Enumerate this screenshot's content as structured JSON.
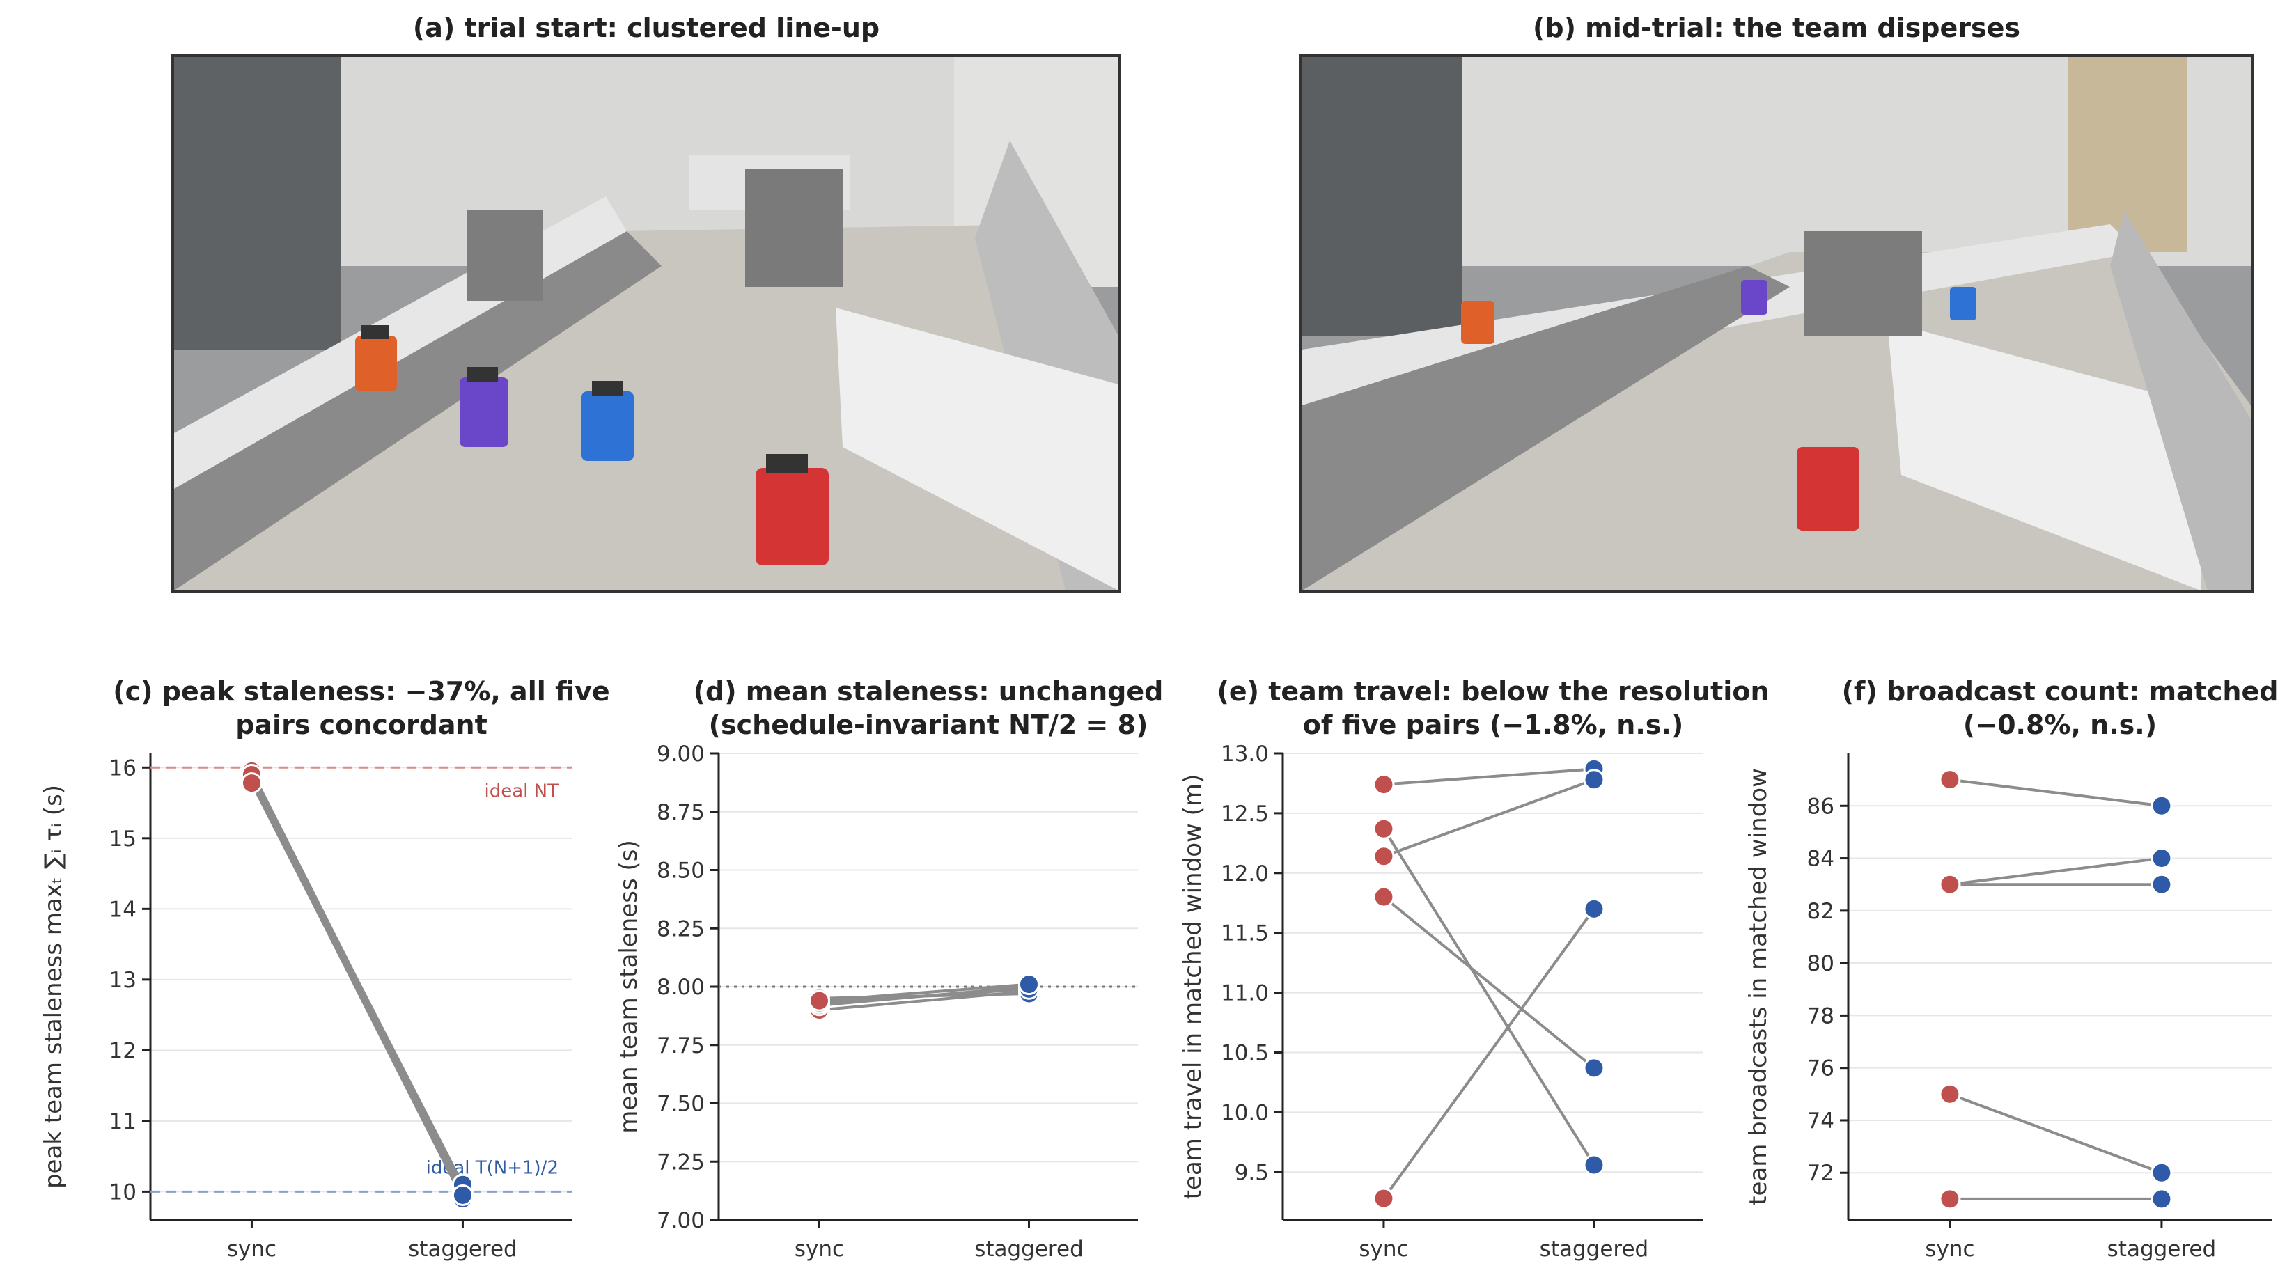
{
  "photos": [
    {
      "title": "(a) trial start: clustered line-up"
    },
    {
      "title": "(b) mid-trial: the team disperses"
    }
  ],
  "chart_data": [
    {
      "type": "line",
      "title": "(c) peak staleness: −37%, all five",
      "title2": "pairs concordant",
      "ylabel": "peak team staleness maxₜ ∑ᵢ τᵢ (s)",
      "categories": [
        "sync",
        "staggered"
      ],
      "ylim": [
        9.6,
        16.2
      ],
      "yticks": [
        10,
        11,
        12,
        13,
        14,
        15,
        16
      ],
      "yticklabels": [
        "10",
        "11",
        "12",
        "13",
        "14",
        "15",
        "16"
      ],
      "pairs": [
        [
          15.95,
          10.05
        ],
        [
          15.8,
          9.9
        ],
        [
          15.85,
          10.0
        ],
        [
          15.9,
          10.1
        ],
        [
          15.78,
          9.95
        ]
      ],
      "refs": [
        {
          "y": 16,
          "label": "ideal NT",
          "color": "#d98a8a",
          "text_color": "#c0504d",
          "style": "dashed"
        },
        {
          "y": 10,
          "label": "ideal T(N+1)/2",
          "color": "#8a9fd0",
          "text_color": "#2f5aa8",
          "style": "dashed"
        }
      ]
    },
    {
      "type": "line",
      "title": "(d) mean staleness: unchanged",
      "title2": "(schedule-invariant NT/2 = 8)",
      "ylabel": "mean team staleness (s)",
      "categories": [
        "sync",
        "staggered"
      ],
      "ylim": [
        7.0,
        9.0
      ],
      "yticks": [
        7.0,
        7.25,
        7.5,
        7.75,
        8.0,
        8.25,
        8.5,
        8.75,
        9.0
      ],
      "yticklabels": [
        "7.00",
        "7.25",
        "7.50",
        "7.75",
        "8.00",
        "8.25",
        "8.50",
        "8.75",
        "9.00"
      ],
      "pairs": [
        [
          7.9,
          7.98
        ],
        [
          7.92,
          8.0
        ],
        [
          7.95,
          7.97
        ],
        [
          7.93,
          7.99
        ],
        [
          7.94,
          8.01
        ]
      ],
      "refs": [
        {
          "y": 8.0,
          "label": "",
          "color": "#777777",
          "text_color": "#777777",
          "style": "dotted"
        }
      ]
    },
    {
      "type": "line",
      "title": "(e) team travel: below the resolution",
      "title2": "of five pairs (−1.8%, n.s.)",
      "ylabel": "team travel in matched window (m)",
      "categories": [
        "sync",
        "staggered"
      ],
      "ylim": [
        9.1,
        13.0
      ],
      "yticks": [
        9.5,
        10.0,
        10.5,
        11.0,
        11.5,
        12.0,
        12.5,
        13.0
      ],
      "yticklabels": [
        "9.5",
        "10.0",
        "10.5",
        "11.0",
        "11.5",
        "12.0",
        "12.5",
        "13.0"
      ],
      "pairs": [
        [
          12.74,
          12.87
        ],
        [
          12.14,
          12.78
        ],
        [
          11.8,
          10.37
        ],
        [
          12.37,
          9.56
        ],
        [
          9.28,
          11.7
        ]
      ],
      "refs": []
    },
    {
      "type": "line",
      "title": "(f) broadcast count: matched",
      "title2": "(−0.8%, n.s.)",
      "ylabel": "team broadcasts in matched window",
      "categories": [
        "sync",
        "staggered"
      ],
      "ylim": [
        70.2,
        88.0
      ],
      "yticks": [
        72,
        74,
        76,
        78,
        80,
        82,
        84,
        86
      ],
      "yticklabels": [
        "72",
        "74",
        "76",
        "78",
        "80",
        "82",
        "84",
        "86"
      ],
      "pairs": [
        [
          87,
          86
        ],
        [
          83,
          84
        ],
        [
          83,
          83
        ],
        [
          75,
          72
        ],
        [
          71,
          71
        ]
      ],
      "refs": []
    }
  ],
  "colors": {
    "sync": "#c0504d",
    "staggered": "#2f5aa8",
    "line": "#8c8c8c",
    "grid": "#e6e6e6"
  }
}
